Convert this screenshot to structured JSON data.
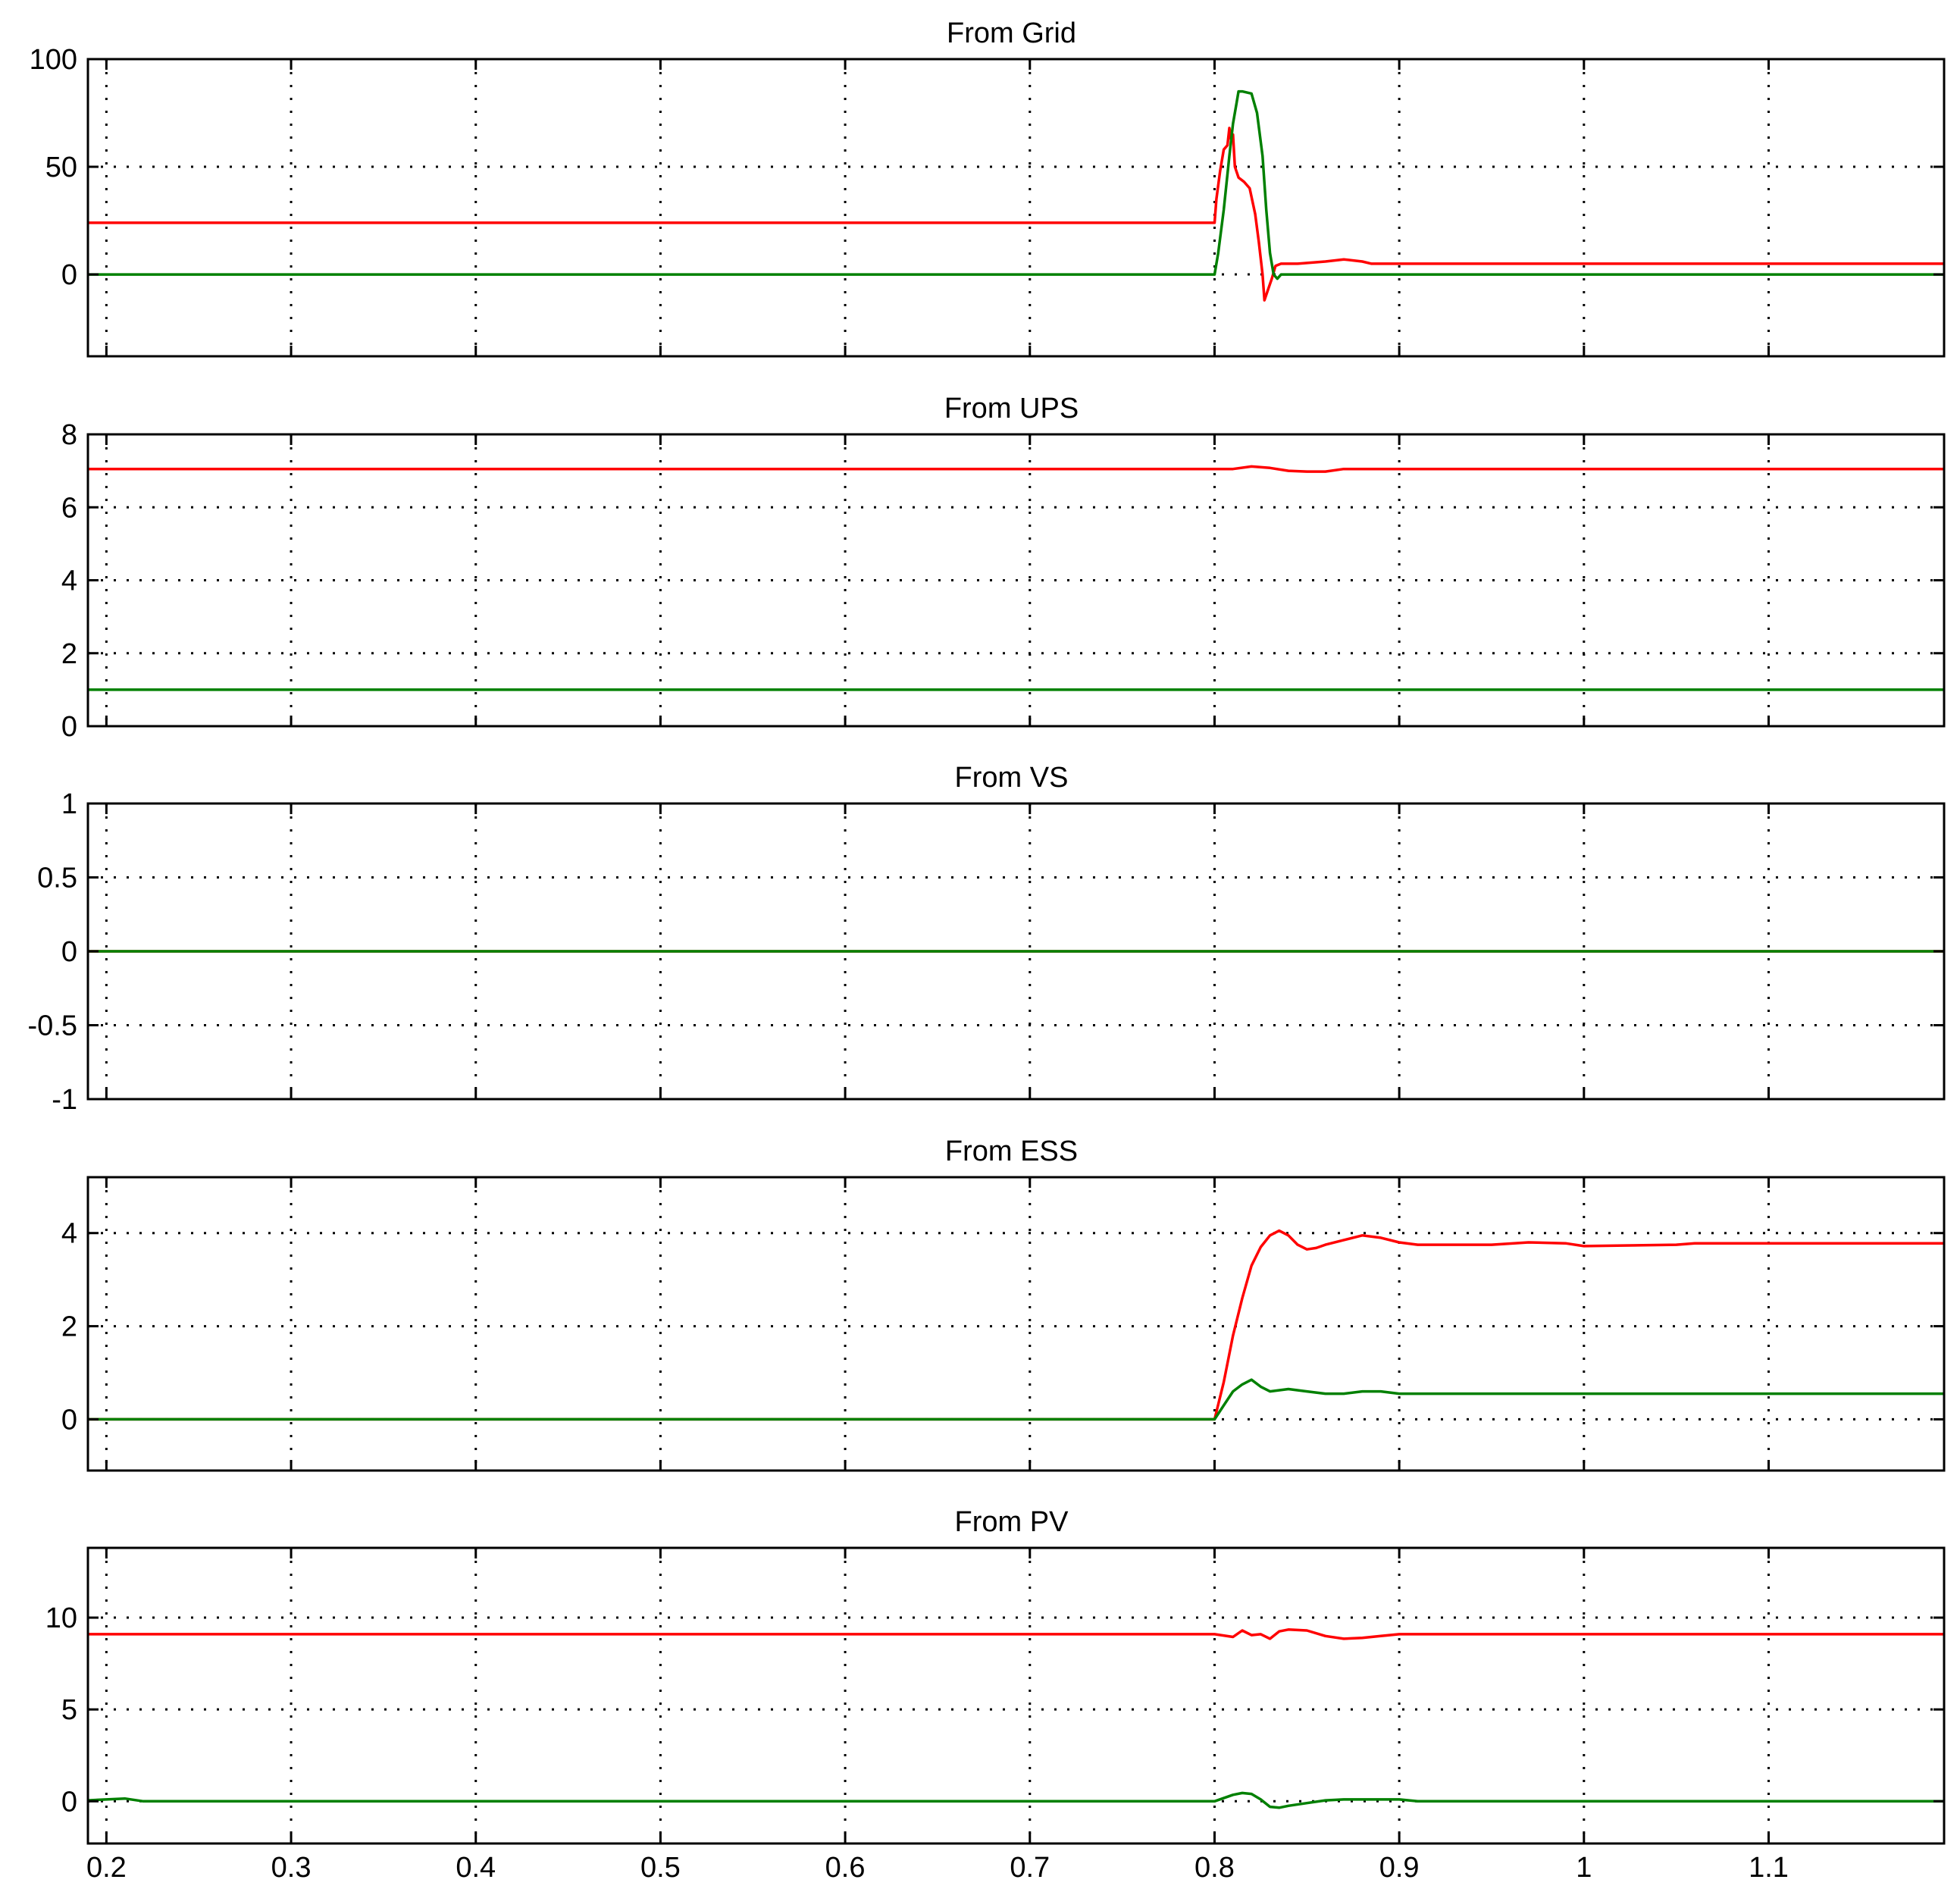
{
  "colors": {
    "red_series": "#ff0000",
    "green_series": "#008000",
    "axes": "#000000",
    "background": "#ffffff"
  },
  "chart_data": [
    {
      "type": "line",
      "title": "From Grid",
      "xlim": [
        0.19,
        1.195
      ],
      "ylim": [
        -38,
        100
      ],
      "grid": true,
      "xticks": [
        0.2,
        0.3,
        0.4,
        0.5,
        0.6,
        0.7,
        0.8,
        0.9,
        1,
        1.1
      ],
      "xtick_labels": [
        "",
        "",
        "",
        "",
        "",
        "",
        "",
        "",
        "",
        ""
      ],
      "yticks": [
        0,
        50,
        100
      ],
      "ytick_labels": [
        "0",
        "50",
        "100"
      ],
      "series": [
        {
          "color": "#ff0000",
          "x": [
            0.19,
            0.8,
            0.801,
            0.803,
            0.805,
            0.807,
            0.808,
            0.809,
            0.81,
            0.811,
            0.813,
            0.816,
            0.819,
            0.822,
            0.824,
            0.826,
            0.827,
            0.829,
            0.831,
            0.833,
            0.836,
            0.845,
            0.86,
            0.87,
            0.88,
            0.885,
            1.195
          ],
          "y": [
            24,
            24,
            35,
            48,
            58,
            60,
            68,
            62,
            65,
            50,
            45,
            43,
            40,
            28,
            15,
            0,
            -12,
            -7,
            -2,
            4,
            5,
            5,
            6,
            7,
            6,
            5,
            5
          ]
        },
        {
          "color": "#008000",
          "x": [
            0.19,
            0.8,
            0.802,
            0.805,
            0.808,
            0.81,
            0.812,
            0.813,
            0.815,
            0.82,
            0.823,
            0.826,
            0.828,
            0.83,
            0.832,
            0.834,
            0.836,
            1.195
          ],
          "y": [
            0,
            0,
            10,
            30,
            55,
            70,
            80,
            85,
            85,
            84,
            75,
            55,
            30,
            10,
            0,
            -2,
            0,
            0
          ]
        }
      ]
    },
    {
      "type": "line",
      "title": "From UPS",
      "xlim": [
        0.19,
        1.195
      ],
      "ylim": [
        0,
        8
      ],
      "grid": true,
      "xticks": [
        0.2,
        0.3,
        0.4,
        0.5,
        0.6,
        0.7,
        0.8,
        0.9,
        1,
        1.1
      ],
      "xtick_labels": [
        "",
        "",
        "",
        "",
        "",
        "",
        "",
        "",
        "",
        ""
      ],
      "yticks": [
        0,
        2,
        4,
        6,
        8
      ],
      "ytick_labels": [
        "0",
        "2",
        "4",
        "6",
        "8"
      ],
      "series": [
        {
          "color": "#ff0000",
          "x": [
            0.19,
            0.81,
            0.82,
            0.83,
            0.84,
            0.85,
            0.86,
            0.87,
            1.195
          ],
          "y": [
            7.05,
            7.05,
            7.12,
            7.08,
            7.0,
            6.98,
            6.98,
            7.05,
            7.05
          ]
        },
        {
          "color": "#008000",
          "x": [
            0.19,
            1.195
          ],
          "y": [
            1.0,
            1.0
          ]
        }
      ]
    },
    {
      "type": "line",
      "title": "From VS",
      "xlim": [
        0.19,
        1.195
      ],
      "ylim": [
        -1,
        1
      ],
      "grid": true,
      "xticks": [
        0.2,
        0.3,
        0.4,
        0.5,
        0.6,
        0.7,
        0.8,
        0.9,
        1,
        1.1
      ],
      "xtick_labels": [
        "",
        "",
        "",
        "",
        "",
        "",
        "",
        "",
        "",
        ""
      ],
      "yticks": [
        -1,
        -0.5,
        0,
        0.5,
        1
      ],
      "ytick_labels": [
        "-1",
        "-0.5",
        "0",
        "0.5",
        "1"
      ],
      "series": [
        {
          "color": "#ff0000",
          "x": [
            0.19,
            1.195
          ],
          "y": [
            0,
            0
          ]
        },
        {
          "color": "#008000",
          "x": [
            0.19,
            1.195
          ],
          "y": [
            0,
            0
          ]
        }
      ]
    },
    {
      "type": "line",
      "title": "From ESS",
      "xlim": [
        0.19,
        1.195
      ],
      "ylim": [
        -1.1,
        5.2
      ],
      "grid": true,
      "xticks": [
        0.2,
        0.3,
        0.4,
        0.5,
        0.6,
        0.7,
        0.8,
        0.9,
        1,
        1.1
      ],
      "xtick_labels": [
        "",
        "",
        "",
        "",
        "",
        "",
        "",
        "",
        "",
        ""
      ],
      "yticks": [
        0,
        2,
        4
      ],
      "ytick_labels": [
        "0",
        "2",
        "4"
      ],
      "series": [
        {
          "color": "#ff0000",
          "x": [
            0.19,
            0.8,
            0.805,
            0.81,
            0.815,
            0.82,
            0.825,
            0.83,
            0.835,
            0.84,
            0.845,
            0.85,
            0.855,
            0.86,
            0.87,
            0.88,
            0.89,
            0.9,
            0.91,
            0.95,
            0.97,
            0.99,
            1.0,
            1.05,
            1.06,
            1.195
          ],
          "y": [
            0,
            0,
            0.8,
            1.8,
            2.6,
            3.3,
            3.7,
            3.95,
            4.05,
            3.95,
            3.75,
            3.65,
            3.68,
            3.75,
            3.85,
            3.95,
            3.9,
            3.8,
            3.75,
            3.75,
            3.8,
            3.78,
            3.72,
            3.75,
            3.78,
            3.78
          ]
        },
        {
          "color": "#008000",
          "x": [
            0.19,
            0.8,
            0.805,
            0.81,
            0.815,
            0.82,
            0.825,
            0.83,
            0.84,
            0.85,
            0.86,
            0.87,
            0.88,
            0.89,
            0.9,
            1.195
          ],
          "y": [
            0,
            0,
            0.3,
            0.6,
            0.75,
            0.85,
            0.7,
            0.6,
            0.65,
            0.6,
            0.55,
            0.55,
            0.6,
            0.6,
            0.55,
            0.55
          ]
        }
      ]
    },
    {
      "type": "line",
      "title": "From PV",
      "xlim": [
        0.19,
        1.195
      ],
      "ylim": [
        -2.3,
        13.8
      ],
      "grid": true,
      "xticks": [
        0.2,
        0.3,
        0.4,
        0.5,
        0.6,
        0.7,
        0.8,
        0.9,
        1,
        1.1
      ],
      "xtick_labels": [
        "0.2",
        "0.3",
        "0.4",
        "0.5",
        "0.6",
        "0.7",
        "0.8",
        "0.9",
        "1",
        "1.1"
      ],
      "yticks": [
        0,
        5,
        10
      ],
      "ytick_labels": [
        "0",
        "5",
        "10"
      ],
      "series": [
        {
          "color": "#ff0000",
          "x": [
            0.19,
            0.8,
            0.81,
            0.815,
            0.82,
            0.825,
            0.83,
            0.835,
            0.84,
            0.85,
            0.86,
            0.87,
            0.88,
            0.89,
            0.9,
            1.195
          ],
          "y": [
            9.1,
            9.1,
            8.95,
            9.3,
            9.05,
            9.1,
            8.85,
            9.25,
            9.35,
            9.3,
            9.0,
            8.85,
            8.9,
            9.0,
            9.1,
            9.1
          ]
        },
        {
          "color": "#008000",
          "x": [
            0.19,
            0.21,
            0.22,
            0.8,
            0.81,
            0.815,
            0.82,
            0.825,
            0.83,
            0.835,
            0.84,
            0.85,
            0.86,
            0.87,
            0.88,
            0.89,
            0.9,
            0.91,
            1.195
          ],
          "y": [
            0.05,
            0.15,
            0.0,
            0.0,
            0.35,
            0.45,
            0.4,
            0.1,
            -0.3,
            -0.35,
            -0.25,
            -0.1,
            0.05,
            0.1,
            0.1,
            0.1,
            0.1,
            0.0,
            0.0
          ]
        }
      ]
    }
  ]
}
